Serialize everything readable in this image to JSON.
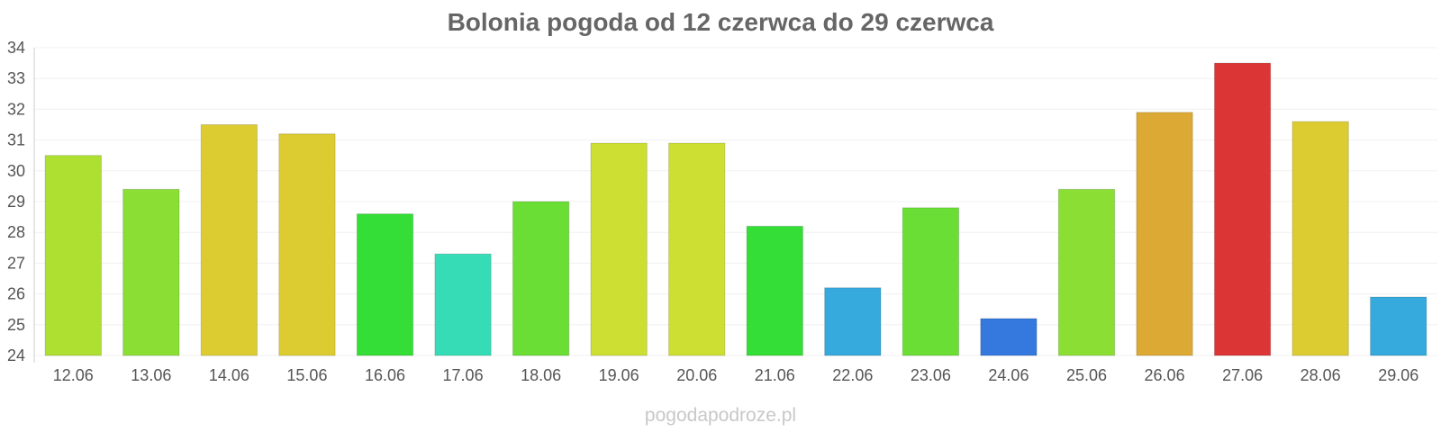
{
  "chart_data": {
    "type": "bar",
    "title": "Bolonia pogoda od 12 czerwca do 29 czerwca",
    "xlabel": "",
    "ylabel": "",
    "categories": [
      "12.06",
      "13.06",
      "14.06",
      "15.06",
      "16.06",
      "17.06",
      "18.06",
      "19.06",
      "20.06",
      "21.06",
      "22.06",
      "23.06",
      "24.06",
      "25.06",
      "26.06",
      "27.06",
      "28.06",
      "29.06"
    ],
    "values": [
      30.5,
      29.4,
      31.5,
      31.2,
      28.6,
      27.3,
      29.0,
      30.9,
      30.9,
      28.2,
      26.2,
      28.8,
      25.2,
      29.4,
      31.9,
      33.5,
      31.6,
      25.9
    ],
    "colors": [
      "#aee032",
      "#8ade34",
      "#dccc32",
      "#dccc32",
      "#35dd37",
      "#36dcb6",
      "#6ade35",
      "#cedf33",
      "#cedf33",
      "#35dd37",
      "#36a9dd",
      "#6ade35",
      "#3579de",
      "#8ade34",
      "#dca935",
      "#dc3535",
      "#dccc32",
      "#36a9dd"
    ],
    "ylim": [
      24,
      34
    ],
    "yticks": [
      24,
      25,
      26,
      27,
      28,
      29,
      30,
      31,
      32,
      33,
      34
    ],
    "grid": true,
    "legend": "none"
  },
  "watermark": "pogodapodroze.pl"
}
